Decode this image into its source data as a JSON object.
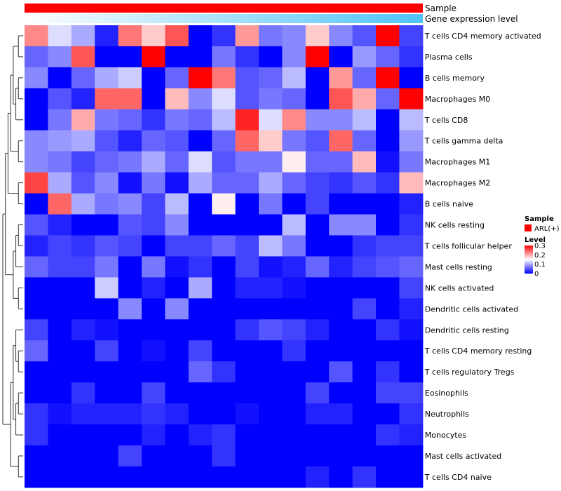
{
  "chart_data": {
    "type": "heatmap",
    "annotation_rows": [
      {
        "name": "Sample",
        "color": "#FF0000"
      },
      {
        "name": "Gene expression level",
        "gradient": [
          "#FFFFFF",
          "#4FC3F7"
        ]
      }
    ],
    "rows": [
      "T cells CD4 memory activated",
      "Plasma cells",
      "B cells memory",
      "Macrophages M0",
      "T cells CD8",
      "T cells gamma delta",
      "Macrophages M1",
      "Macrophages M2",
      "B cells naive",
      "NK cells resting",
      "T cells follicular helper",
      "Mast cells resting",
      "NK cells activated",
      "Dendritic cells activated",
      "Dendritic cells resting",
      "T cells CD4 memory resting",
      "T cells regulatory  Tregs",
      "Eosinophils",
      "Neutrophils",
      "Monocytes",
      "Mast cells activated",
      "T cells CD4 naive"
    ],
    "values": [
      [
        0.22,
        0.13,
        0.1,
        0.02,
        0.23,
        0.18,
        0.25,
        0.0,
        0.03,
        0.21,
        0.07,
        0.08,
        0.18,
        0.08,
        0.05,
        0.3,
        0.04
      ],
      [
        0.06,
        0.08,
        0.25,
        0.0,
        0.0,
        0.3,
        0.0,
        0.0,
        0.07,
        0.03,
        0.0,
        0.08,
        0.3,
        0.0,
        0.09,
        0.06,
        0.03
      ],
      [
        0.08,
        0.0,
        0.06,
        0.1,
        0.12,
        0.0,
        0.06,
        0.3,
        0.23,
        0.05,
        0.06,
        0.11,
        0.0,
        0.21,
        0.06,
        0.3,
        0.0
      ],
      [
        0.0,
        0.05,
        0.02,
        0.24,
        0.24,
        0.0,
        0.19,
        0.08,
        0.13,
        0.05,
        0.07,
        0.06,
        0.0,
        0.25,
        0.2,
        0.06,
        0.3
      ],
      [
        0.0,
        0.07,
        0.2,
        0.07,
        0.06,
        0.03,
        0.07,
        0.06,
        0.11,
        0.28,
        0.13,
        0.22,
        0.08,
        0.08,
        0.11,
        0.0,
        0.11
      ],
      [
        0.08,
        0.09,
        0.1,
        0.05,
        0.02,
        0.06,
        0.05,
        0.0,
        0.06,
        0.24,
        0.18,
        0.07,
        0.05,
        0.24,
        0.06,
        0.0,
        0.09
      ],
      [
        0.08,
        0.07,
        0.04,
        0.06,
        0.07,
        0.1,
        0.06,
        0.13,
        0.05,
        0.07,
        0.07,
        0.16,
        0.06,
        0.06,
        0.19,
        0.01,
        0.07
      ],
      [
        0.26,
        0.1,
        0.05,
        0.08,
        0.01,
        0.07,
        0.01,
        0.1,
        0.06,
        0.06,
        0.1,
        0.06,
        0.04,
        0.03,
        0.05,
        0.03,
        0.19
      ],
      [
        0.0,
        0.24,
        0.1,
        0.07,
        0.08,
        0.04,
        0.11,
        0.0,
        0.16,
        0.0,
        0.07,
        0.0,
        0.04,
        0.0,
        0.0,
        0.0,
        0.02
      ],
      [
        0.05,
        0.02,
        0.0,
        0.0,
        0.05,
        0.04,
        0.08,
        0.0,
        0.0,
        0.0,
        0.0,
        0.11,
        0.0,
        0.08,
        0.08,
        0.0,
        0.03
      ],
      [
        0.02,
        0.04,
        0.03,
        0.05,
        0.04,
        0.0,
        0.04,
        0.04,
        0.06,
        0.04,
        0.11,
        0.07,
        0.0,
        0.0,
        0.03,
        0.04,
        0.04
      ],
      [
        0.06,
        0.04,
        0.04,
        0.07,
        0.0,
        0.07,
        0.01,
        0.03,
        0.0,
        0.04,
        0.01,
        0.02,
        0.06,
        0.02,
        0.04,
        0.05,
        0.06
      ],
      [
        0.0,
        0.0,
        0.0,
        0.12,
        0.0,
        0.02,
        0.0,
        0.1,
        0.0,
        0.02,
        0.02,
        0.01,
        0.0,
        0.0,
        0.0,
        0.0,
        0.04
      ],
      [
        0.0,
        0.0,
        0.0,
        0.0,
        0.08,
        0.0,
        0.08,
        0.0,
        0.0,
        0.0,
        0.0,
        0.0,
        0.0,
        0.0,
        0.04,
        0.0,
        0.02
      ],
      [
        0.04,
        0.0,
        0.02,
        0.01,
        0.0,
        0.0,
        0.0,
        0.0,
        0.0,
        0.03,
        0.05,
        0.04,
        0.02,
        0.0,
        0.0,
        0.03,
        0.01
      ],
      [
        0.06,
        0.0,
        0.0,
        0.04,
        0.0,
        0.01,
        0.0,
        0.04,
        0.0,
        0.0,
        0.0,
        0.03,
        0.0,
        0.0,
        0.0,
        0.0,
        0.0
      ],
      [
        0.0,
        0.0,
        0.0,
        0.0,
        0.0,
        0.0,
        0.0,
        0.06,
        0.03,
        0.0,
        0.0,
        0.0,
        0.0,
        0.05,
        0.0,
        0.03,
        0.0
      ],
      [
        0.0,
        0.0,
        0.03,
        0.0,
        0.0,
        0.04,
        0.0,
        0.0,
        0.0,
        0.0,
        0.0,
        0.0,
        0.04,
        0.0,
        0.0,
        0.04,
        0.04
      ],
      [
        0.03,
        0.01,
        0.02,
        0.02,
        0.02,
        0.03,
        0.02,
        0.0,
        0.0,
        0.01,
        0.0,
        0.0,
        0.02,
        0.02,
        0.0,
        0.0,
        0.03
      ],
      [
        0.03,
        0.0,
        0.0,
        0.0,
        0.0,
        0.02,
        0.0,
        0.02,
        0.03,
        0.0,
        0.0,
        0.0,
        0.0,
        0.0,
        0.0,
        0.03,
        0.02
      ],
      [
        0.0,
        0.0,
        0.0,
        0.0,
        0.04,
        0.0,
        0.0,
        0.0,
        0.03,
        0.0,
        0.0,
        0.0,
        0.0,
        0.0,
        0.0,
        0.0,
        0.0
      ],
      [
        0.0,
        0.0,
        0.0,
        0.0,
        0.0,
        0.0,
        0.0,
        0.0,
        0.0,
        0.0,
        0.0,
        0.0,
        0.02,
        0.0,
        0.03,
        0.0,
        0.0
      ]
    ],
    "color_scale": {
      "low": "#0000FF",
      "mid": "#FFFFFF",
      "high": "#FF0000",
      "range": [
        0,
        0.3
      ],
      "mid_value": 0.15
    },
    "legend": {
      "sample_title": "Sample",
      "sample_entry": "ARL(+)",
      "level_title": "Level",
      "ticks": [
        "0.3",
        "0.2",
        "0.1",
        "0"
      ],
      "tick_values": [
        0.3,
        0.2,
        0.1,
        0
      ]
    }
  }
}
